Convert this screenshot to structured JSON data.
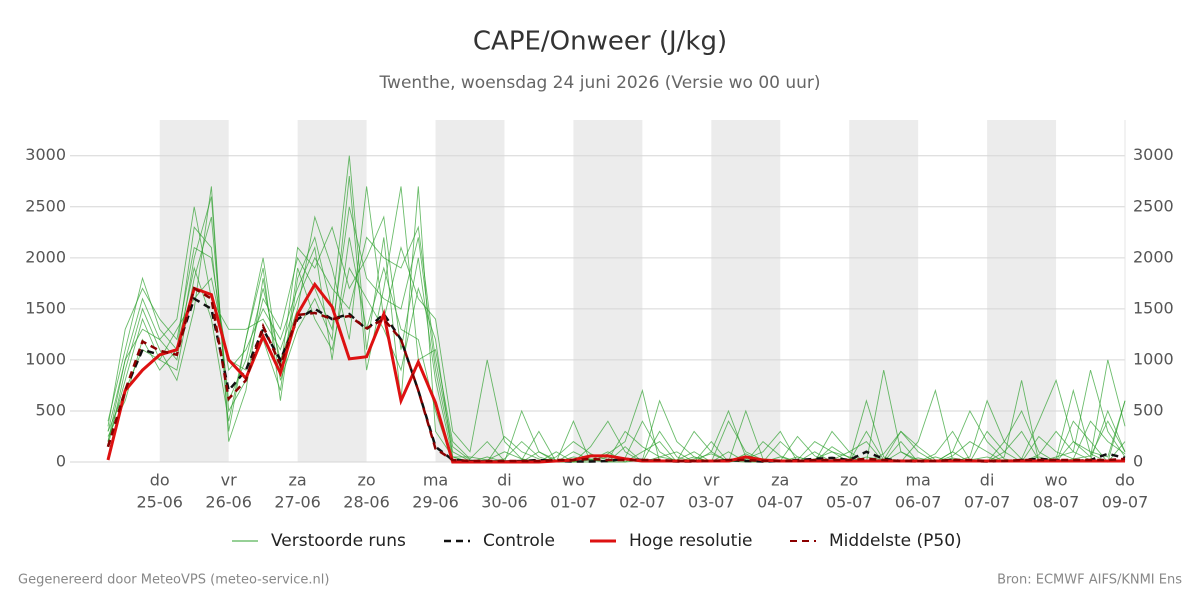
{
  "chart_data": {
    "type": "line",
    "title": "CAPE/Onweer (J/kg)",
    "subtitle": "Twenthe, woensdag 24 juni 2026 (Versie wo 00 uur)",
    "footer_left": "Gegenereerd door MeteoVPS (meteo-service.nl)",
    "footer_right": "Bron: ECMWF AIFS/KNMI Ens",
    "categories": [
      null,
      null,
      null,
      [
        "do",
        "25-06"
      ],
      null,
      null,
      null,
      [
        "vr",
        "26-06"
      ],
      null,
      null,
      null,
      [
        "za",
        "27-06"
      ],
      null,
      null,
      null,
      [
        "zo",
        "28-06"
      ],
      null,
      null,
      null,
      [
        "ma",
        "29-06"
      ],
      null,
      null,
      null,
      [
        "di",
        "30-06"
      ],
      null,
      null,
      null,
      [
        "wo",
        "01-07"
      ],
      null,
      null,
      null,
      [
        "do",
        "02-07"
      ],
      null,
      null,
      null,
      [
        "vr",
        "03-07"
      ],
      null,
      null,
      null,
      [
        "za",
        "04-07"
      ],
      null,
      null,
      null,
      [
        "zo",
        "05-07"
      ],
      null,
      null,
      null,
      [
        "ma",
        "06-07"
      ],
      null,
      null,
      null,
      [
        "di",
        "07-07"
      ],
      null,
      null,
      null,
      [
        "wo",
        "08-07"
      ],
      null,
      null,
      null,
      [
        "do",
        "09-07"
      ]
    ],
    "ylim": [
      0,
      3350
    ],
    "yticks": [
      0,
      500,
      1000,
      1500,
      2000,
      2500,
      3000
    ],
    "grid": true,
    "ensemble": {
      "name": "Verstoorde runs",
      "color": "#2ca02c",
      "members": [
        [
          300,
          1000,
          1600,
          1200,
          1000,
          2000,
          2600,
          300,
          1200,
          1900,
          600,
          1800,
          2200,
          1500,
          3000,
          1100,
          2200,
          600,
          2700,
          300,
          50,
          0,
          20,
          100,
          30,
          0,
          50,
          200,
          80,
          20,
          300,
          150,
          50,
          20,
          0,
          100,
          500,
          50,
          30,
          0,
          20,
          200,
          100,
          50,
          0,
          80,
          300,
          150,
          20,
          0,
          50,
          600,
          200,
          30,
          0,
          50,
          100,
          900,
          300,
          50
        ],
        [
          200,
          800,
          1400,
          1000,
          1300,
          1600,
          1800,
          1000,
          900,
          1600,
          1300,
          2000,
          1700,
          1300,
          2500,
          1800,
          1600,
          1500,
          2200,
          900,
          100,
          10,
          0,
          30,
          200,
          50,
          0,
          100,
          20,
          0,
          40,
          400,
          100,
          0,
          30,
          80,
          10,
          0,
          200,
          60,
          0,
          30,
          100,
          0,
          50,
          20,
          300,
          100,
          0,
          40,
          10,
          0,
          200,
          500,
          100,
          0,
          30,
          60,
          400,
          100
        ],
        [
          400,
          1100,
          1800,
          1300,
          1100,
          2300,
          2100,
          600,
          1000,
          1700,
          1000,
          1500,
          2400,
          1900,
          1200,
          2700,
          1400,
          2100,
          1600,
          1400,
          300,
          100,
          1000,
          200,
          30,
          0,
          0,
          50,
          20,
          100,
          0,
          20,
          600,
          200,
          50,
          0,
          400,
          100,
          20,
          0,
          50,
          0,
          150,
          40,
          0,
          900,
          100,
          20,
          0,
          60,
          200,
          100,
          0,
          30,
          400,
          800,
          200,
          50,
          1000,
          350
        ],
        [
          250,
          600,
          1200,
          900,
          1100,
          1900,
          1400,
          400,
          1200,
          2000,
          900,
          2100,
          1900,
          2300,
          1700,
          2000,
          2400,
          1100,
          2000,
          800,
          50,
          0,
          50,
          0,
          20,
          300,
          0,
          0,
          150,
          400,
          100,
          0,
          50,
          100,
          0,
          200,
          0,
          30,
          100,
          300,
          0,
          0,
          20,
          100,
          200,
          0,
          0,
          40,
          0,
          100,
          500,
          200,
          30,
          0,
          70,
          300,
          100,
          20,
          500,
          100
        ],
        [
          150,
          900,
          1500,
          1100,
          800,
          1500,
          2700,
          200,
          700,
          1800,
          800,
          1300,
          1600,
          1200,
          2800,
          900,
          1700,
          2700,
          1000,
          1100,
          200,
          30,
          200,
          10,
          0,
          100,
          20,
          0,
          0,
          80,
          200,
          700,
          0,
          10,
          300,
          100,
          0,
          20,
          0,
          10,
          250,
          60,
          0,
          0,
          300,
          20,
          0,
          200,
          700,
          20,
          0,
          0,
          50,
          800,
          0,
          30,
          700,
          80,
          0,
          600
        ],
        [
          350,
          1300,
          1700,
          1400,
          1200,
          2100,
          2000,
          900,
          1100,
          1500,
          1200,
          1700,
          2100,
          1000,
          2200,
          1300,
          1900,
          1300,
          1200,
          500,
          0,
          0,
          0,
          0,
          500,
          100,
          0,
          0,
          30,
          0,
          150,
          0,
          0,
          20,
          100,
          0,
          0,
          80,
          0,
          50,
          0,
          0,
          300,
          100,
          0,
          0,
          200,
          0,
          0,
          100,
          0,
          0,
          100,
          300,
          20,
          0,
          400,
          200,
          0,
          200
        ],
        [
          200,
          1000,
          1300,
          1200,
          1400,
          2500,
          1600,
          1300,
          1300,
          1400,
          1100,
          1600,
          2000,
          1700,
          1500,
          2200,
          2000,
          1900,
          2300,
          1000,
          150,
          20,
          0,
          250,
          100,
          30,
          0,
          400,
          0,
          50,
          20,
          0,
          300,
          50,
          0,
          0,
          100,
          0,
          0,
          200,
          50,
          0,
          0,
          0,
          600,
          50,
          0,
          0,
          80,
          300,
          20,
          50,
          0,
          0,
          250,
          100,
          30,
          400,
          200,
          80
        ],
        [
          300,
          700,
          1100,
          1000,
          900,
          1800,
          2400,
          500,
          800,
          1200,
          700,
          1900,
          1400,
          1100,
          1900,
          1600,
          1300,
          900,
          1700,
          1200,
          50,
          50,
          20,
          0,
          0,
          0,
          100,
          0,
          20,
          0,
          0,
          100,
          200,
          0,
          50,
          0,
          0,
          500,
          30,
          0,
          0,
          100,
          0,
          20,
          0,
          0,
          100,
          0,
          50,
          0,
          0,
          300,
          100,
          0,
          50,
          0,
          200,
          100,
          50,
          600
        ]
      ]
    },
    "series": [
      {
        "name": "Controle",
        "color": "#111111",
        "dash": true,
        "values": [
          150,
          700,
          1100,
          1050,
          1100,
          1600,
          1500,
          700,
          900,
          1300,
          1000,
          1400,
          1500,
          1400,
          1450,
          1300,
          1450,
          1200,
          700,
          150,
          20,
          10,
          5,
          5,
          10,
          20,
          10,
          5,
          5,
          10,
          30,
          20,
          10,
          5,
          5,
          10,
          20,
          10,
          5,
          10,
          20,
          30,
          40,
          20,
          100,
          30,
          10,
          5,
          10,
          20,
          10,
          5,
          10,
          20,
          30,
          20,
          10,
          20,
          80,
          40
        ]
      },
      {
        "name": "Hoge resolutie",
        "color": "#dd1111",
        "dash": false,
        "values": [
          20,
          700,
          900,
          1050,
          1100,
          1700,
          1640,
          1000,
          820,
          1230,
          870,
          1450,
          1740,
          1520,
          1010,
          1030,
          1450,
          600,
          980,
          580,
          0,
          0,
          0,
          0,
          0,
          0,
          10,
          20,
          60,
          60,
          30,
          10,
          10,
          10,
          10,
          10,
          10,
          50,
          20,
          10,
          10,
          10,
          10,
          10,
          10,
          10,
          10,
          10,
          10,
          10,
          10,
          10,
          10,
          10,
          10,
          10,
          10,
          10,
          10,
          10
        ]
      },
      {
        "name": "Middelste (P50)",
        "color": "#8b0000",
        "dash": true,
        "values": [
          150,
          700,
          1180,
          1090,
          1050,
          1700,
          1600,
          620,
          800,
          1330,
          950,
          1440,
          1460,
          1400,
          1430,
          1310,
          1400,
          1200,
          700,
          130,
          20,
          10,
          10,
          10,
          10,
          10,
          20,
          20,
          30,
          20,
          20,
          20,
          20,
          10,
          10,
          10,
          20,
          20,
          10,
          10,
          10,
          20,
          20,
          20,
          30,
          20,
          10,
          10,
          10,
          20,
          20,
          10,
          10,
          20,
          20,
          20,
          20,
          20,
          20,
          30
        ]
      }
    ]
  }
}
